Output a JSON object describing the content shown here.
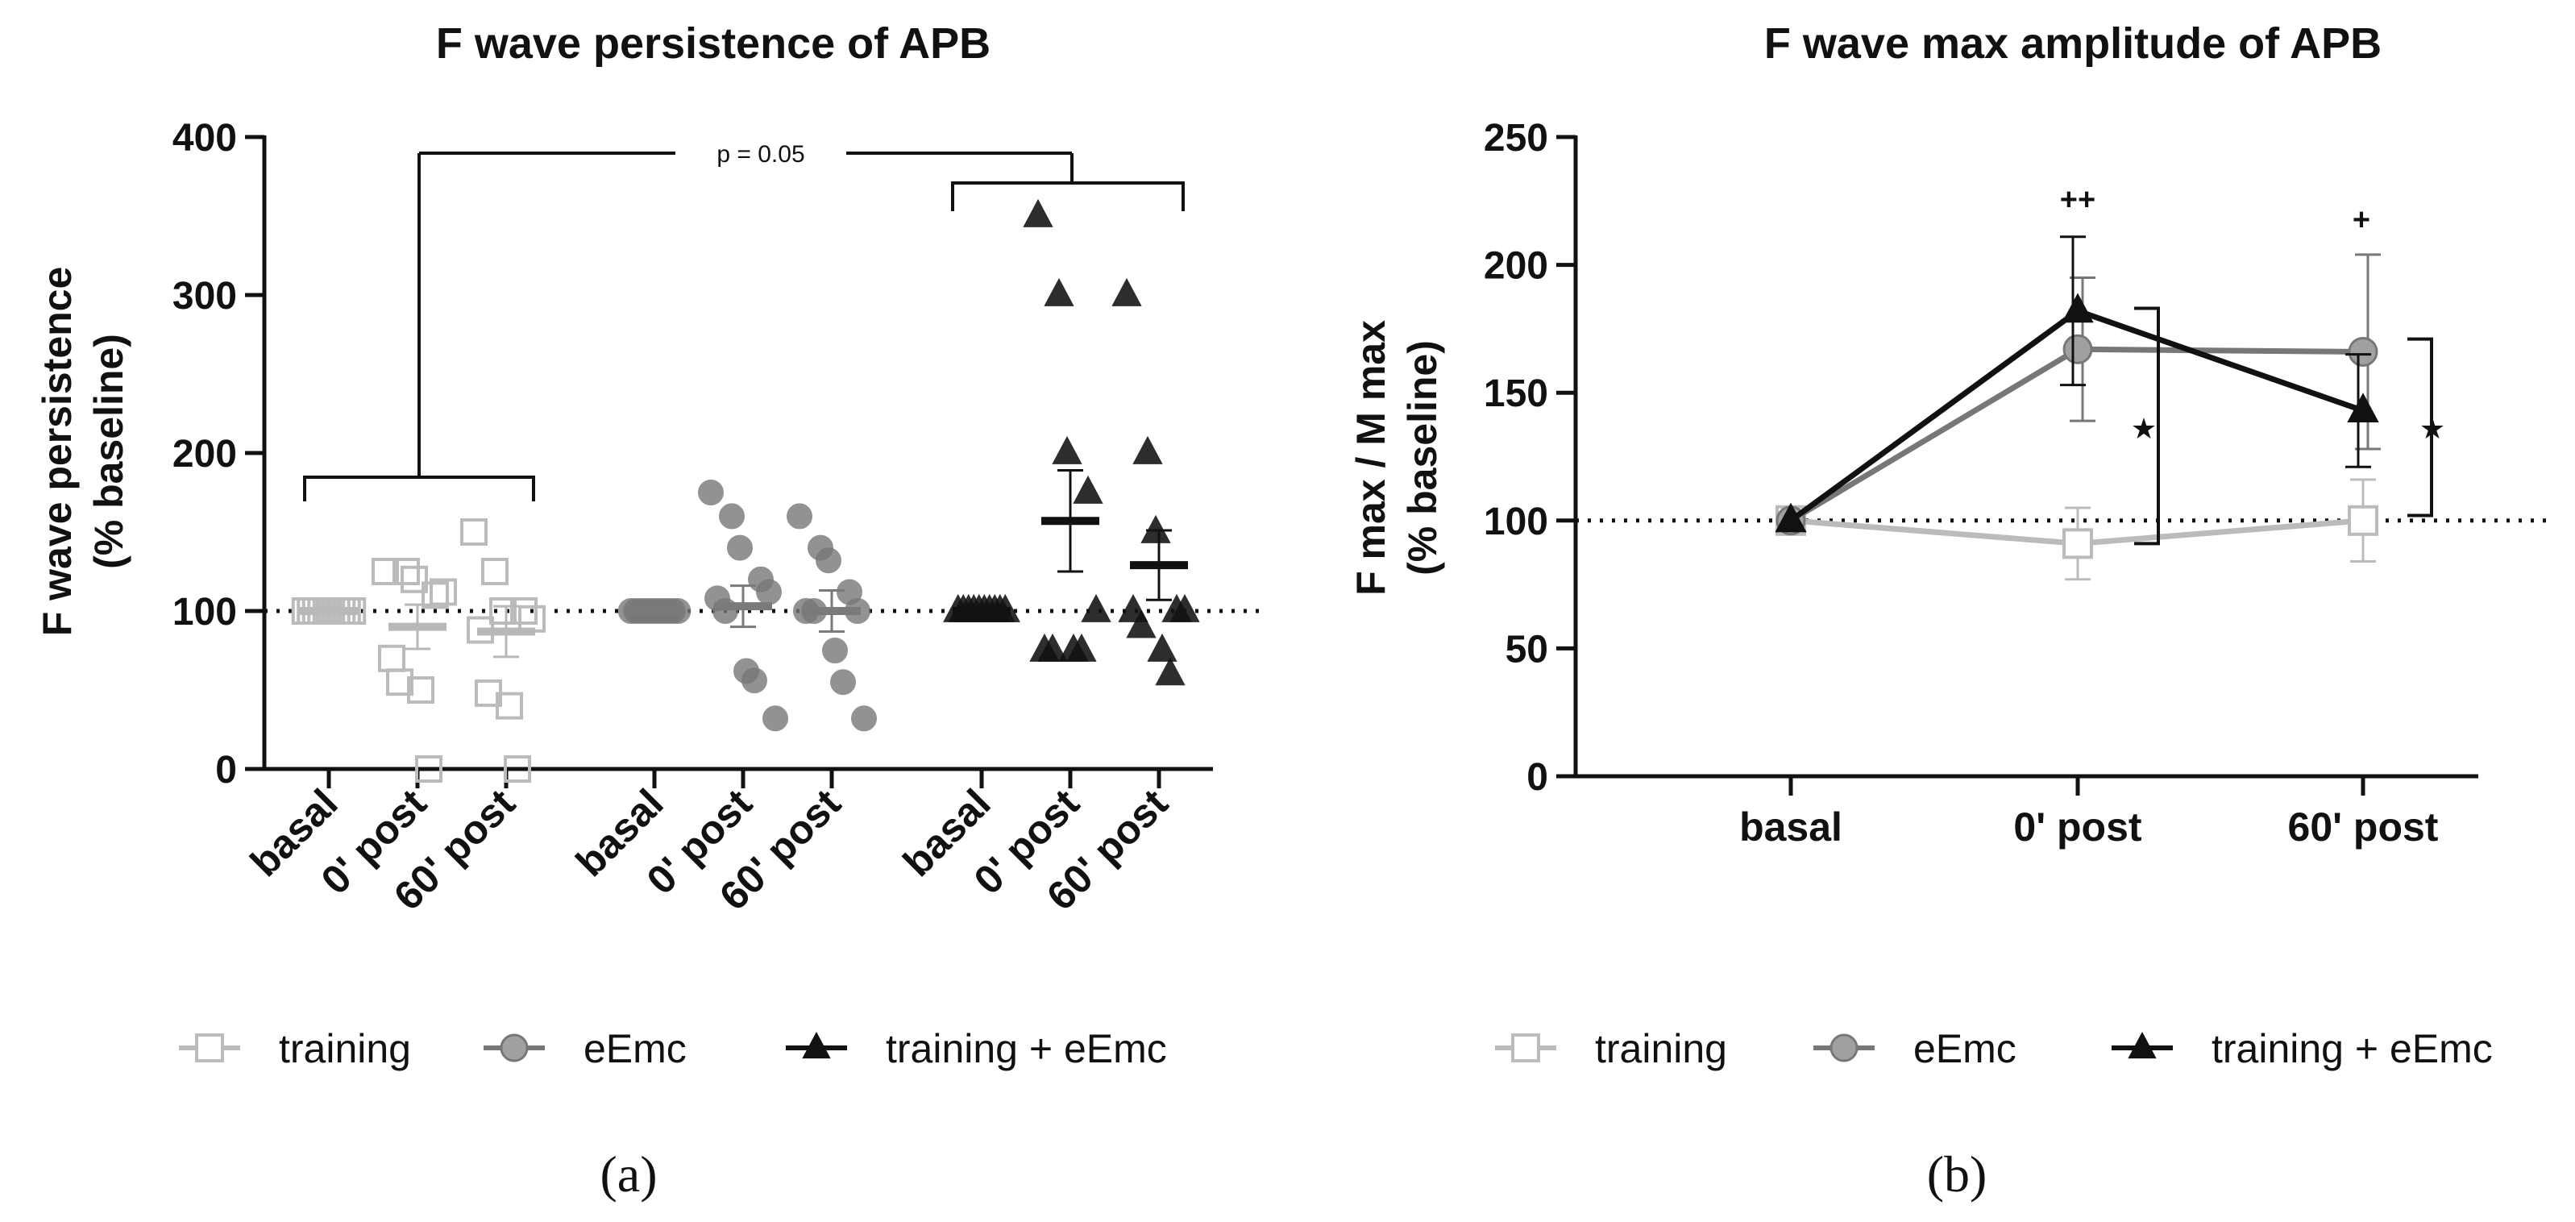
{
  "colors": {
    "training": "#bbbbbb",
    "eEmc": "#777777",
    "training_eEmc": "#111111"
  },
  "legend": [
    "training",
    "eEmc",
    "training + eEmc"
  ],
  "panels": [
    {
      "label": "(a)"
    },
    {
      "label": "(b)"
    }
  ],
  "chart_data": [
    {
      "type": "scatter",
      "title": "F wave persistence of APB",
      "ylabel_line1": "F wave persistence",
      "ylabel_line2": "(% baseline)",
      "ylim": [
        0,
        400
      ],
      "yticks": [
        "0",
        "100",
        "200",
        "300",
        "400"
      ],
      "reference_line": 100,
      "annotation": "p = 0.05",
      "groups": [
        {
          "name": "training",
          "categories": [
            "basal",
            "0' post",
            "60' post"
          ],
          "points": [
            [
              100,
              100,
              100,
              100,
              100,
              100,
              100,
              100,
              100,
              100
            ],
            [
              125,
              125,
              120,
              110,
              112,
              70,
              55,
              50,
              0
            ],
            [
              150,
              125,
              100,
              100,
              95,
              88,
              48,
              40,
              0
            ]
          ],
          "means": [
            100,
            90,
            87
          ],
          "sems": [
            0,
            14,
            16
          ]
        },
        {
          "name": "eEmc",
          "categories": [
            "basal",
            "0' post",
            "60' post"
          ],
          "points": [
            [
              100,
              100,
              100,
              100,
              100,
              100,
              100,
              100,
              100,
              100
            ],
            [
              175,
              160,
              140,
              120,
              112,
              108,
              100,
              62,
              56,
              32
            ],
            [
              160,
              140,
              132,
              112,
              100,
              100,
              100,
              75,
              55,
              32
            ]
          ],
          "means": [
            100,
            103,
            100
          ],
          "sems": [
            0,
            13,
            13
          ]
        },
        {
          "name": "training + eEmc",
          "categories": [
            "basal",
            "0' post",
            "60' post"
          ],
          "points": [
            [
              100,
              100,
              100,
              100,
              100,
              100,
              100,
              100,
              100,
              100
            ],
            [
              350,
              300,
              200,
              175,
              100,
              75,
              75,
              75,
              75
            ],
            [
              300,
              200,
              150,
              100,
              100,
              100,
              90,
              75,
              60
            ]
          ],
          "means": [
            100,
            157,
            129
          ],
          "sems": [
            0,
            32,
            22
          ]
        }
      ]
    },
    {
      "type": "line",
      "title": "F wave max amplitude of APB",
      "ylabel_line1": "F max / M max",
      "ylabel_line2": "(% baseline)",
      "ylim": [
        0,
        250
      ],
      "yticks": [
        "0",
        "50",
        "100",
        "150",
        "200",
        "250"
      ],
      "categories": [
        "basal",
        "0' post",
        "60' post"
      ],
      "reference_line": 100,
      "series": [
        {
          "name": "training",
          "values": [
            100,
            91,
            100
          ],
          "errors": [
            0,
            14,
            16
          ]
        },
        {
          "name": "eEmc",
          "values": [
            100,
            167,
            166
          ],
          "errors": [
            0,
            28,
            38
          ]
        },
        {
          "name": "training + eEmc",
          "values": [
            100,
            182,
            143
          ],
          "errors": [
            0,
            29,
            22
          ]
        }
      ],
      "markers": [
        "++",
        "+",
        "★",
        "★"
      ]
    }
  ]
}
